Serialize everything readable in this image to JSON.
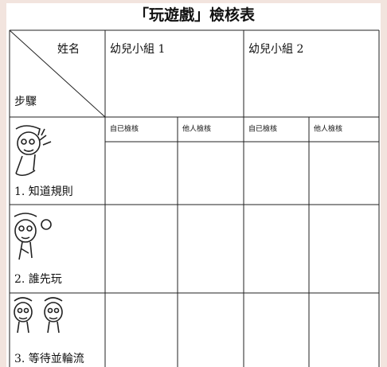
{
  "title": "「玩遊戲」檢核表",
  "table": {
    "header": {
      "name_label": "姓名",
      "step_label": "步驟",
      "groups": [
        "幼兒小組 1",
        "幼兒小組 2"
      ],
      "subheaders": [
        "自已檢核",
        "他人檢核",
        "自已檢核",
        "他人檢核"
      ]
    },
    "rows": [
      "1. 知道規則",
      "2. 誰先玩",
      "3. 等待並輪流"
    ]
  }
}
